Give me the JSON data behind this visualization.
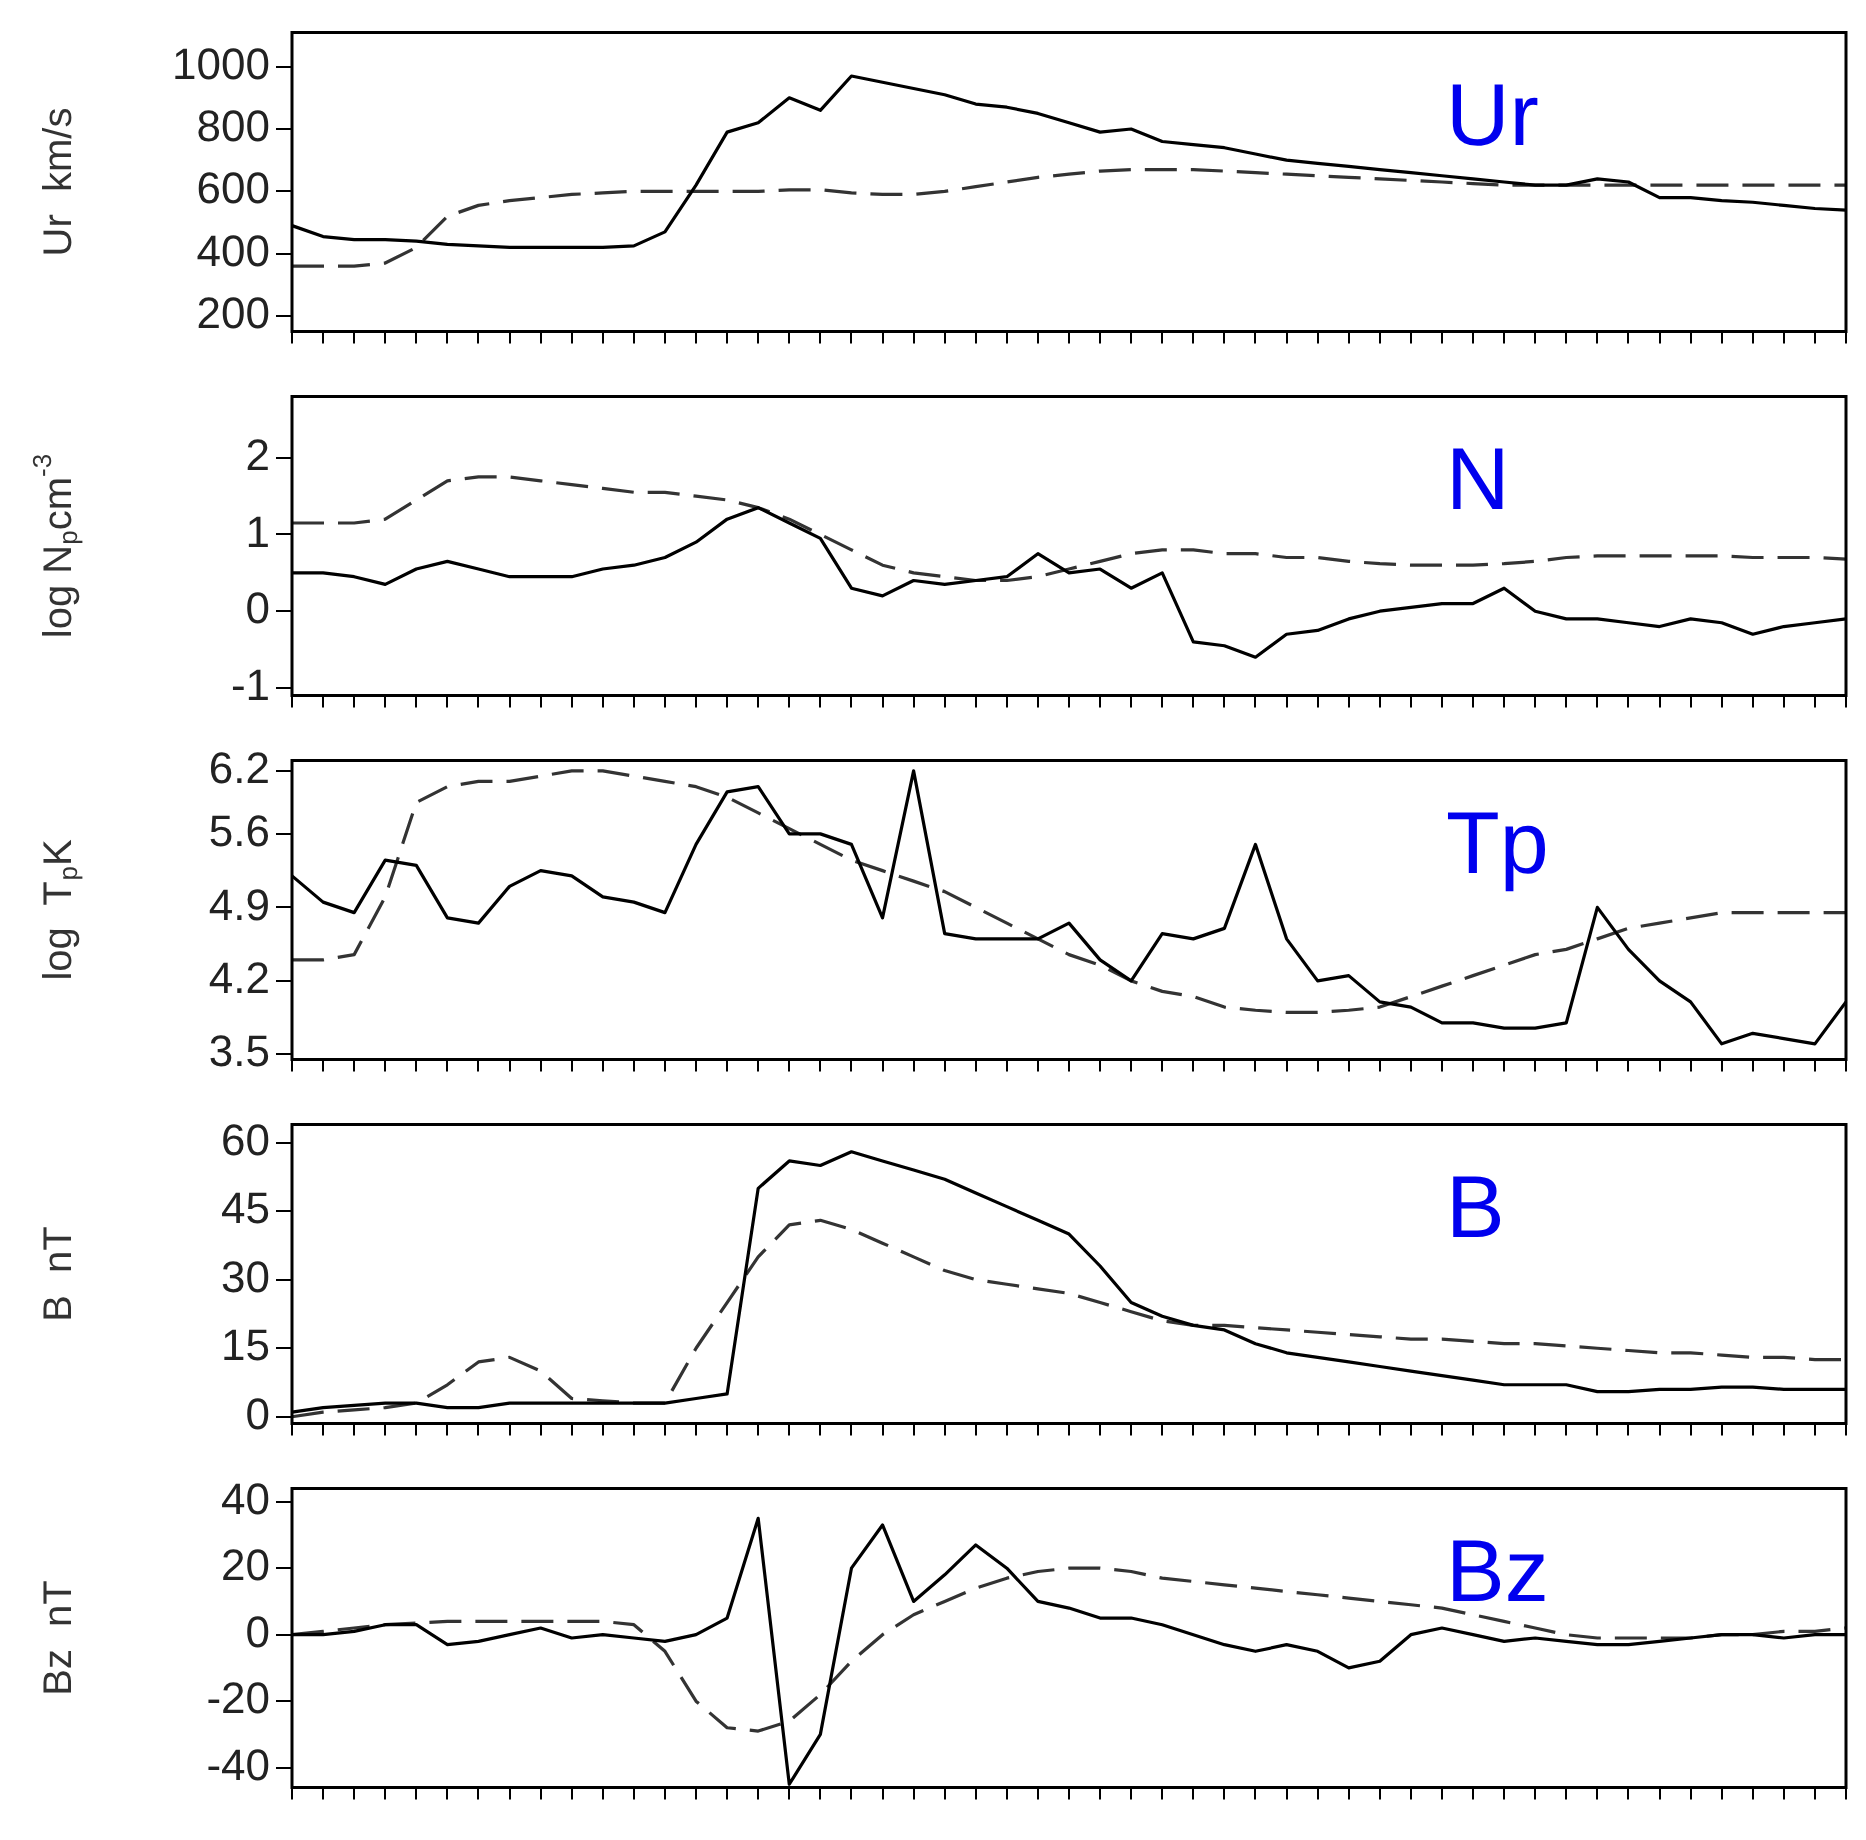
{
  "chart_data": [
    {
      "type": "line",
      "ylabel": "Ur  km/s",
      "annotations": [
        "Ur"
      ],
      "tick_labels": "y",
      "grid": false,
      "legend": false,
      "marker": "none",
      "ylim": [
        150,
        1110
      ],
      "yticks": [
        200,
        400,
        600,
        800,
        1000
      ],
      "categories": [
        null,
        null,
        null,
        null,
        null,
        null,
        null,
        null,
        null,
        null,
        null,
        null,
        null,
        null,
        null,
        null,
        null,
        null,
        null,
        null,
        null,
        null,
        null,
        null,
        null,
        null,
        null,
        null,
        null,
        null,
        null,
        null,
        null,
        null,
        null,
        null,
        null,
        null,
        null,
        null,
        null,
        null,
        null,
        null,
        null,
        null,
        null,
        null,
        null,
        null,
        null
      ],
      "series": [
        {
          "color": "#000000",
          "line_style": "solid",
          "values": [
            490,
            455,
            445,
            445,
            440,
            430,
            425,
            420,
            420,
            420,
            420,
            425,
            470,
            620,
            790,
            820,
            900,
            860,
            970,
            950,
            930,
            910,
            880,
            870,
            850,
            820,
            790,
            800,
            760,
            750,
            740,
            720,
            700,
            690,
            680,
            670,
            660,
            650,
            640,
            630,
            620,
            620,
            640,
            630,
            580,
            580,
            570,
            565,
            555,
            545,
            540
          ]
        },
        {
          "color": "#333333",
          "line_style": "dashed",
          "values": [
            360,
            360,
            360,
            370,
            420,
            520,
            555,
            570,
            580,
            590,
            595,
            600,
            600,
            600,
            600,
            600,
            605,
            605,
            595,
            590,
            590,
            600,
            615,
            630,
            645,
            655,
            665,
            670,
            670,
            670,
            665,
            660,
            655,
            650,
            645,
            640,
            635,
            630,
            625,
            620,
            620,
            620,
            620,
            620,
            620,
            620,
            620,
            620,
            620,
            620,
            620
          ]
        }
      ]
    },
    {
      "type": "line",
      "ylabel": "log N$_{p}$cm$^{-3}$",
      "annotations": [
        "N"
      ],
      "tick_labels": "y",
      "grid": false,
      "legend": false,
      "marker": "none",
      "ylim": [
        -1.1,
        2.8
      ],
      "yticks": [
        -1,
        0,
        1,
        2
      ],
      "categories": [
        null,
        null,
        null,
        null,
        null,
        null,
        null,
        null,
        null,
        null,
        null,
        null,
        null,
        null,
        null,
        null,
        null,
        null,
        null,
        null,
        null,
        null,
        null,
        null,
        null,
        null,
        null,
        null,
        null,
        null,
        null,
        null,
        null,
        null,
        null,
        null,
        null,
        null,
        null,
        null,
        null,
        null,
        null,
        null,
        null,
        null,
        null,
        null,
        null,
        null,
        null
      ],
      "series": [
        {
          "color": "#000000",
          "line_style": "solid",
          "values": [
            0.5,
            0.5,
            0.45,
            0.35,
            0.55,
            0.65,
            0.55,
            0.45,
            0.45,
            0.45,
            0.55,
            0.6,
            0.7,
            0.9,
            1.2,
            1.35,
            1.15,
            0.95,
            0.3,
            0.2,
            0.4,
            0.35,
            0.4,
            0.45,
            0.75,
            0.5,
            0.55,
            0.3,
            0.5,
            -0.4,
            -0.45,
            -0.6,
            -0.3,
            -0.25,
            -0.1,
            0.0,
            0.05,
            0.1,
            0.1,
            0.3,
            0.0,
            -0.1,
            -0.1,
            -0.15,
            -0.2,
            -0.1,
            -0.15,
            -0.3,
            -0.2,
            -0.15,
            -0.1
          ]
        },
        {
          "color": "#333333",
          "line_style": "dashed",
          "values": [
            1.15,
            1.15,
            1.15,
            1.2,
            1.45,
            1.7,
            1.75,
            1.75,
            1.7,
            1.65,
            1.6,
            1.55,
            1.55,
            1.5,
            1.45,
            1.35,
            1.2,
            1.0,
            0.8,
            0.6,
            0.5,
            0.45,
            0.4,
            0.4,
            0.45,
            0.55,
            0.65,
            0.75,
            0.8,
            0.8,
            0.75,
            0.75,
            0.7,
            0.7,
            0.65,
            0.62,
            0.6,
            0.6,
            0.6,
            0.62,
            0.65,
            0.7,
            0.72,
            0.72,
            0.72,
            0.72,
            0.72,
            0.7,
            0.7,
            0.7,
            0.68
          ]
        }
      ]
    },
    {
      "type": "line",
      "ylabel": "log  T$_{p}$K",
      "annotations": [
        "Tp"
      ],
      "tick_labels": "y",
      "grid": false,
      "legend": false,
      "marker": "none",
      "ylim": [
        3.45,
        6.3
      ],
      "yticks": [
        3.5,
        4.2,
        4.9,
        5.6,
        6.2
      ],
      "categories": [
        null,
        null,
        null,
        null,
        null,
        null,
        null,
        null,
        null,
        null,
        null,
        null,
        null,
        null,
        null,
        null,
        null,
        null,
        null,
        null,
        null,
        null,
        null,
        null,
        null,
        null,
        null,
        null,
        null,
        null,
        null,
        null,
        null,
        null,
        null,
        null,
        null,
        null,
        null,
        null,
        null,
        null,
        null,
        null,
        null,
        null,
        null,
        null,
        null,
        null,
        null
      ],
      "series": [
        {
          "color": "#000000",
          "line_style": "solid",
          "values": [
            5.2,
            4.95,
            4.85,
            5.35,
            5.3,
            4.8,
            4.75,
            5.1,
            5.25,
            5.2,
            5.0,
            4.95,
            4.85,
            5.5,
            6.0,
            6.05,
            5.6,
            5.6,
            5.5,
            4.8,
            6.2,
            4.65,
            4.6,
            4.6,
            4.6,
            4.75,
            4.4,
            4.2,
            4.65,
            4.6,
            4.7,
            5.5,
            4.6,
            4.2,
            4.25,
            4.0,
            3.95,
            3.8,
            3.8,
            3.75,
            3.75,
            3.8,
            4.9,
            4.5,
            4.2,
            4.0,
            3.6,
            3.7,
            3.65,
            3.6,
            4.0
          ]
        },
        {
          "color": "#333333",
          "line_style": "dashed",
          "values": [
            4.4,
            4.4,
            4.45,
            5.0,
            5.9,
            6.05,
            6.1,
            6.1,
            6.15,
            6.2,
            6.2,
            6.15,
            6.1,
            6.05,
            5.95,
            5.8,
            5.65,
            5.5,
            5.35,
            5.25,
            5.15,
            5.05,
            4.9,
            4.75,
            4.6,
            4.45,
            4.35,
            4.2,
            4.1,
            4.05,
            3.95,
            3.92,
            3.9,
            3.9,
            3.92,
            3.95,
            4.05,
            4.15,
            4.25,
            4.35,
            4.45,
            4.5,
            4.6,
            4.7,
            4.75,
            4.8,
            4.85,
            4.85,
            4.85,
            4.85,
            4.85
          ]
        }
      ]
    },
    {
      "type": "line",
      "ylabel": "B  nT",
      "annotations": [
        "B"
      ],
      "tick_labels": "y",
      "grid": false,
      "legend": false,
      "marker": "none",
      "ylim": [
        -1.5,
        64
      ],
      "yticks": [
        0,
        15,
        30,
        45,
        60
      ],
      "categories": [
        null,
        null,
        null,
        null,
        null,
        null,
        null,
        null,
        null,
        null,
        null,
        null,
        null,
        null,
        null,
        null,
        null,
        null,
        null,
        null,
        null,
        null,
        null,
        null,
        null,
        null,
        null,
        null,
        null,
        null,
        null,
        null,
        null,
        null,
        null,
        null,
        null,
        null,
        null,
        null,
        null,
        null,
        null,
        null,
        null,
        null,
        null,
        null,
        null,
        null,
        null
      ],
      "series": [
        {
          "color": "#000000",
          "line_style": "solid",
          "values": [
            1,
            2,
            2.5,
            3,
            3,
            2,
            2,
            3,
            3,
            3,
            3,
            3,
            3,
            4,
            5,
            50,
            56,
            55,
            58,
            56,
            54,
            52,
            49,
            46,
            43,
            40,
            33,
            25,
            22,
            20,
            19,
            16,
            14,
            13,
            12,
            11,
            10,
            9,
            8,
            7,
            7,
            7,
            5.5,
            5.5,
            6,
            6,
            6.5,
            6.5,
            6,
            6,
            6
          ]
        },
        {
          "color": "#333333",
          "line_style": "dashed",
          "values": [
            0,
            1,
            1.5,
            2,
            3,
            7,
            12,
            13,
            10,
            4,
            3.5,
            3,
            3,
            15,
            25,
            35,
            42,
            43,
            41,
            38,
            35,
            32,
            30,
            29,
            28,
            27,
            25,
            23,
            21,
            20,
            20,
            19.5,
            19,
            18.5,
            18,
            17.5,
            17,
            17,
            16.5,
            16,
            16,
            15.5,
            15,
            14.5,
            14,
            14,
            13.5,
            13,
            13,
            12.5,
            12.5
          ]
        }
      ]
    },
    {
      "type": "line",
      "ylabel": "Bz  nT",
      "annotations": [
        "Bz"
      ],
      "tick_labels": "y",
      "grid": false,
      "legend": false,
      "marker": "none",
      "ylim": [
        -46,
        44
      ],
      "yticks": [
        -40,
        -20,
        0,
        20,
        40
      ],
      "categories": [
        null,
        null,
        null,
        null,
        null,
        null,
        null,
        null,
        null,
        null,
        null,
        null,
        null,
        null,
        null,
        null,
        null,
        null,
        null,
        null,
        null,
        null,
        null,
        null,
        null,
        null,
        null,
        null,
        null,
        null,
        null,
        null,
        null,
        null,
        null,
        null,
        null,
        null,
        null,
        null,
        null,
        null,
        null,
        null,
        null,
        null,
        null,
        null,
        null,
        null,
        null
      ],
      "series": [
        {
          "color": "#000000",
          "line_style": "solid",
          "values": [
            0,
            0,
            1,
            3,
            3,
            -3,
            -2,
            0,
            2,
            -1,
            0,
            -1,
            -2,
            0,
            5,
            35,
            -45,
            -30,
            20,
            33,
            10,
            18,
            27,
            20,
            10,
            8,
            5,
            5,
            3,
            0,
            -3,
            -5,
            -3,
            -5,
            -10,
            -8,
            0,
            2,
            0,
            -2,
            -1,
            -2,
            -3,
            -3,
            -2,
            -1,
            0,
            0,
            -1,
            0,
            0
          ]
        },
        {
          "color": "#333333",
          "line_style": "dashed",
          "values": [
            0,
            1,
            2,
            3,
            3.5,
            4,
            4,
            4,
            4,
            4,
            4,
            3,
            -5,
            -20,
            -28,
            -29,
            -26,
            -18,
            -8,
            0,
            6,
            10,
            14,
            17,
            19,
            20,
            20,
            19,
            17,
            16,
            15,
            14,
            13,
            12,
            11,
            10,
            9,
            8,
            6,
            4,
            2,
            0,
            -1,
            -1,
            -1,
            -1,
            0,
            0,
            1,
            1,
            2
          ]
        }
      ]
    }
  ]
}
